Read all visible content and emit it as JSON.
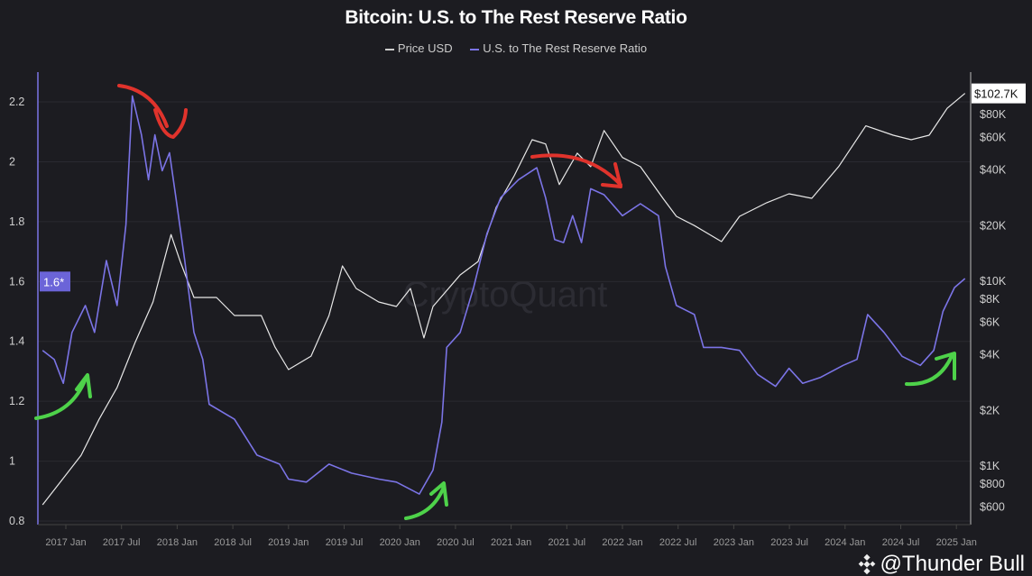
{
  "chart_data": {
    "type": "line",
    "title": "Bitcoin: U.S. to The Rest Reserve Ratio",
    "legend_position": "top",
    "grid": true,
    "x_tick_labels": [
      "2017 Jan",
      "2017 Jul",
      "2018 Jan",
      "2018 Jul",
      "2019 Jan",
      "2019 Jul",
      "2020 Jan",
      "2020 Jul",
      "2021 Jan",
      "2021 Jul",
      "2022 Jan",
      "2022 Jul",
      "2023 Jan",
      "2023 Jul",
      "2024 Jan",
      "2024 Jul",
      "2025 Jan"
    ],
    "left_axis": {
      "ticks": [
        "0.8",
        "1",
        "1.2",
        "1.4",
        "1.6",
        "1.8",
        "2",
        "2.2"
      ],
      "range": [
        0.8,
        2.3
      ],
      "last_value_label": "1.6*"
    },
    "right_axis": {
      "scale": "log",
      "ticks": [
        "$600",
        "$800",
        "$1K",
        "$2K",
        "$4K",
        "$6K",
        "$8K",
        "$10K",
        "$20K",
        "$40K",
        "$60K",
        "$80K"
      ],
      "tick_values": [
        600,
        800,
        1000,
        2000,
        4000,
        6000,
        8000,
        10000,
        20000,
        40000,
        60000,
        80000
      ],
      "range": [
        500,
        140000
      ],
      "last_value_label": "$102.7K"
    },
    "series": [
      {
        "name": "Price USD",
        "axis": "right",
        "color": "#e8e8e8",
        "x": [
          "2016-10-16",
          "2016-12-23",
          "2017-02-20",
          "2017-04-20",
          "2017-06-18",
          "2017-08-16",
          "2017-10-14",
          "2017-12-12",
          "2018-01-11",
          "2018-02-25",
          "2018-05-10",
          "2018-07-08",
          "2018-10-04",
          "2018-11-18",
          "2019-01-01",
          "2019-03-16",
          "2019-05-14",
          "2019-06-27",
          "2019-08-11",
          "2019-10-24",
          "2019-12-21",
          "2020-02-05",
          "2020-03-20",
          "2020-04-19",
          "2020-07-17",
          "2020-09-14",
          "2020-11-12",
          "2021-01-11",
          "2021-03-11",
          "2021-04-24",
          "2021-06-08",
          "2021-08-06",
          "2021-09-19",
          "2021-11-02",
          "2022-01-01",
          "2022-03-01",
          "2022-05-14",
          "2022-06-27",
          "2022-08-25",
          "2022-11-22",
          "2023-01-20",
          "2023-04-19",
          "2023-07-01",
          "2023-09-14",
          "2023-12-11",
          "2024-03-09",
          "2024-06-07",
          "2024-08-05",
          "2024-10-03",
          "2024-12-01",
          "2025-01-29"
        ],
        "values": [
          610,
          850,
          1130,
          1770,
          2630,
          4600,
          7640,
          17700,
          12650,
          8080,
          8080,
          6450,
          6450,
          4350,
          3290,
          3890,
          6450,
          11970,
          9040,
          7640,
          7220,
          9040,
          4880,
          7220,
          10700,
          12650,
          24800,
          36800,
          57700,
          54700,
          33000,
          48800,
          41200,
          64700,
          46200,
          41200,
          27800,
          22200,
          19800,
          16200,
          22200,
          26300,
          29400,
          27800,
          41200,
          68600,
          61000,
          57700,
          61000,
          85400,
          102700
        ]
      },
      {
        "name": "U.S. to The Rest Reserve Ratio",
        "axis": "left",
        "color": "#7b74e6",
        "x": [
          "2016-10-16",
          "2016-11-23",
          "2016-12-23",
          "2017-01-21",
          "2017-03-06",
          "2017-04-05",
          "2017-05-14",
          "2017-06-18",
          "2017-07-17",
          "2017-08-07",
          "2017-09-06",
          "2017-09-29",
          "2017-10-20",
          "2017-11-13",
          "2017-12-07",
          "2017-12-28",
          "2018-01-26",
          "2018-02-25",
          "2018-03-26",
          "2018-04-16",
          "2018-07-08",
          "2018-09-20",
          "2018-12-03",
          "2019-01-01",
          "2019-03-01",
          "2019-05-14",
          "2019-07-27",
          "2019-10-24",
          "2019-12-21",
          "2020-03-05",
          "2020-04-19",
          "2020-05-18",
          "2020-06-03",
          "2020-07-17",
          "2020-08-30",
          "2020-10-13",
          "2020-11-27",
          "2021-01-25",
          "2021-03-26",
          "2021-04-24",
          "2021-05-24",
          "2021-06-22",
          "2021-07-22",
          "2021-08-20",
          "2021-09-19",
          "2021-11-02",
          "2022-01-01",
          "2022-03-01",
          "2022-04-29",
          "2022-05-22",
          "2022-06-27",
          "2022-08-25",
          "2022-09-24",
          "2022-11-22",
          "2023-01-20",
          "2023-03-20",
          "2023-05-18",
          "2023-07-01",
          "2023-08-15",
          "2023-10-13",
          "2023-12-26",
          "2024-02-09",
          "2024-03-15",
          "2024-05-08",
          "2024-07-06",
          "2024-09-04",
          "2024-10-18",
          "2024-11-17",
          "2024-12-25",
          "2025-01-29"
        ],
        "values": [
          1.37,
          1.34,
          1.26,
          1.43,
          1.52,
          1.43,
          1.67,
          1.52,
          1.79,
          2.22,
          2.09,
          1.94,
          2.09,
          1.97,
          2.03,
          1.88,
          1.67,
          1.43,
          1.34,
          1.19,
          1.14,
          1.02,
          0.99,
          0.94,
          0.93,
          0.99,
          0.96,
          0.94,
          0.93,
          0.89,
          0.97,
          1.13,
          1.38,
          1.43,
          1.58,
          1.76,
          1.88,
          1.94,
          1.98,
          1.88,
          1.74,
          1.73,
          1.82,
          1.73,
          1.91,
          1.89,
          1.82,
          1.86,
          1.82,
          1.65,
          1.52,
          1.49,
          1.38,
          1.38,
          1.37,
          1.29,
          1.25,
          1.31,
          1.26,
          1.28,
          1.32,
          1.34,
          1.49,
          1.43,
          1.35,
          1.32,
          1.37,
          1.5,
          1.58,
          1.61
        ]
      }
    ]
  },
  "watermark": "CryptoQuant",
  "handle": "@Thunder Bull",
  "colors": {
    "background": "#1c1c21",
    "ratio": "#7b74e6",
    "price": "#e8e8e8",
    "arrow_red": "#e0332c",
    "arrow_green": "#4ed24a"
  }
}
